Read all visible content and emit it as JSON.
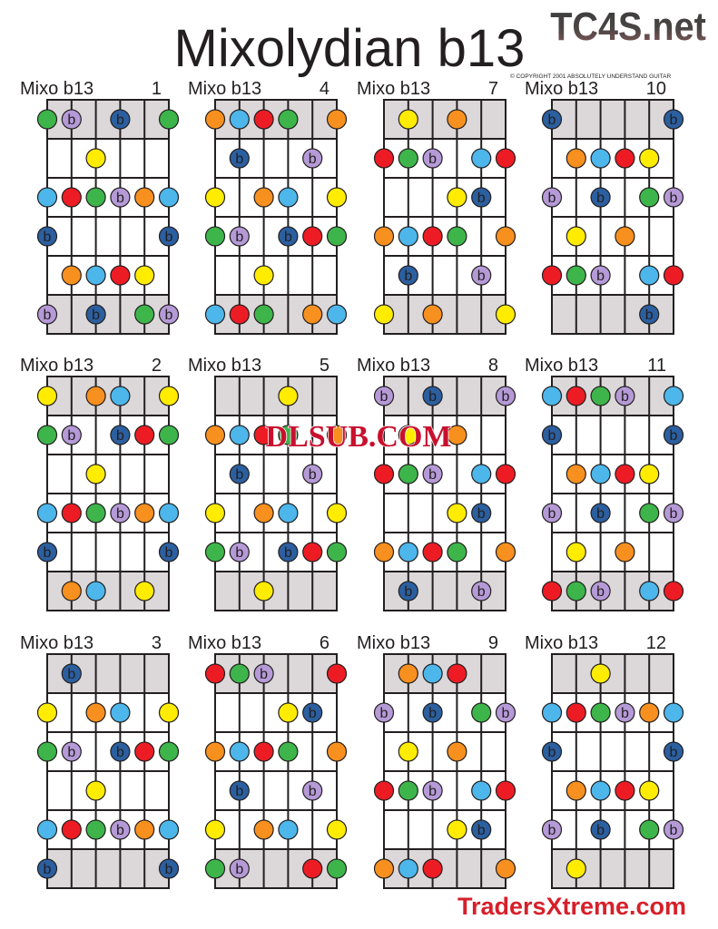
{
  "title": "Mixolydian b13",
  "logo": "TC4S.net",
  "copyright": "© COPYRIGHT 2001 ABSOLUTELY UNDERSTAND GUITAR",
  "watermark_center": "DLSUB.COM",
  "watermark_bottom": "TradersXtreme.com",
  "flat_symbol": "b",
  "colors": {
    "G": "#3db54a",
    "P": "#b59ad7",
    "N": "#2b5f9f",
    "Y": "#ffec00",
    "L": "#4db6ea",
    "R": "#ed1c24",
    "O": "#f7901e",
    "shade": "#dcd8d9",
    "line": "#231f20"
  },
  "flat_codes": [
    "P",
    "N"
  ],
  "grid_order": [
    [
      1,
      4,
      7,
      10
    ],
    [
      2,
      5,
      8,
      11
    ],
    [
      3,
      6,
      9,
      12
    ]
  ],
  "diagrams": {
    "1": {
      "label": "Mixo b13",
      "number": "1",
      "rows": [
        "GP.N.G",
        "..Y...",
        "LRGPOL",
        "N....N",
        ".OLRY.",
        "P.N.GP"
      ]
    },
    "2": {
      "label": "Mixo b13",
      "number": "2",
      "rows": [
        "Y.OL.Y",
        "GP.NRG",
        "..Y...",
        "LRGPOL",
        "N....N",
        ".OL.Y."
      ]
    },
    "3": {
      "label": "Mixo b13",
      "number": "3",
      "rows": [
        ".N....",
        "Y.OL.Y",
        "GP.NRG",
        "..Y...",
        "LRGPOL",
        "N....N"
      ]
    },
    "4": {
      "label": "Mixo b13",
      "number": "4",
      "rows": [
        "OLRG.O",
        ".N..P.",
        "Y.OL.Y",
        "GP.NRG",
        "..Y...",
        "LRG.OL"
      ]
    },
    "5": {
      "label": "Mixo b13",
      "number": "5",
      "rows": [
        "...Y..",
        "OLRG.O",
        ".N..P.",
        "Y.OL.Y",
        "GP.NRG",
        "..Y..."
      ]
    },
    "6": {
      "label": "Mixo b13",
      "number": "6",
      "rows": [
        "RGP..R",
        "...YN.",
        "OLRG.O",
        ".N..P.",
        "Y.OL.Y",
        "GP..RG"
      ]
    },
    "7": {
      "label": "Mixo b13",
      "number": "7",
      "rows": [
        ".Y.O..",
        "RGP.LR",
        "...YN.",
        "OLRG.O",
        ".N..P.",
        "Y.O..Y"
      ]
    },
    "8": {
      "label": "Mixo b13",
      "number": "8",
      "rows": [
        "P.N..P",
        ".Y.O..",
        "RGP.LR",
        "...YN.",
        "OLRG.O",
        ".N..P."
      ]
    },
    "9": {
      "label": "Mixo b13",
      "number": "9",
      "rows": [
        ".OLR..",
        "P.N.GP",
        ".Y.O..",
        "RGP.LR",
        "...YN.",
        "OLR..O"
      ]
    },
    "10": {
      "label": "Mixo b13",
      "number": "10",
      "rows": [
        "N....N",
        ".OLRY.",
        "P.N.GP",
        ".Y.O..",
        "RGP.LR",
        "....N."
      ]
    },
    "11": {
      "label": "Mixo b13",
      "number": "11",
      "rows": [
        "LRGP.L",
        "N....N",
        ".OLRY.",
        "P.N.GP",
        ".Y.O..",
        "RGP.LR"
      ]
    },
    "12": {
      "label": "Mixo b13",
      "number": "12",
      "rows": [
        "..Y...",
        "LRGPOL",
        "N....N",
        ".OLRY.",
        "P.N.GP",
        ".Y...."
      ]
    }
  }
}
